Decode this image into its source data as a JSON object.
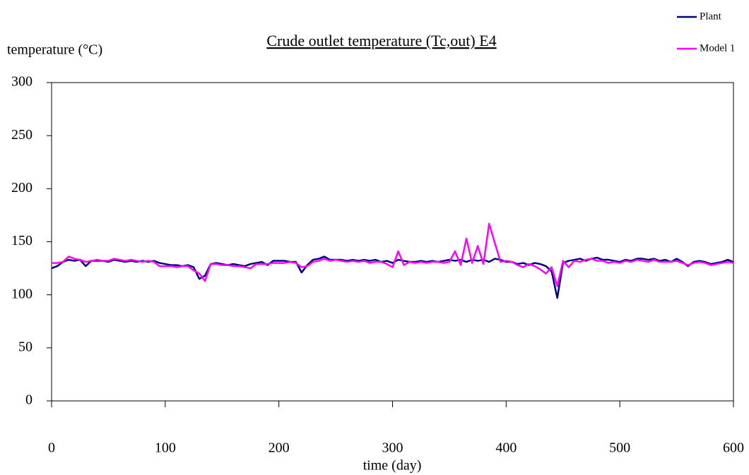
{
  "chart_data": {
    "type": "line",
    "title": "Crude outlet temperature (Tc,out) E4",
    "y_label": "temperature (°C)",
    "x_label": "time (day)",
    "x": [
      0,
      5,
      10,
      15,
      20,
      25,
      30,
      35,
      40,
      45,
      50,
      55,
      60,
      65,
      70,
      75,
      80,
      85,
      90,
      95,
      100,
      105,
      110,
      115,
      120,
      125,
      130,
      135,
      140,
      145,
      150,
      155,
      160,
      165,
      170,
      175,
      180,
      185,
      190,
      195,
      200,
      205,
      210,
      215,
      220,
      225,
      230,
      235,
      240,
      245,
      250,
      255,
      260,
      265,
      270,
      275,
      280,
      285,
      290,
      295,
      300,
      305,
      310,
      315,
      320,
      325,
      330,
      335,
      340,
      345,
      350,
      355,
      360,
      365,
      370,
      375,
      380,
      385,
      390,
      395,
      400,
      405,
      410,
      415,
      420,
      425,
      430,
      435,
      440,
      445,
      450,
      455,
      460,
      465,
      470,
      475,
      480,
      485,
      490,
      495,
      500,
      505,
      510,
      515,
      520,
      525,
      530,
      535,
      540,
      545,
      550,
      555,
      560,
      565,
      570,
      575,
      580,
      585,
      590,
      595,
      600
    ],
    "series": [
      {
        "name": "Plant",
        "color": "#000080",
        "values": [
          125,
          127,
          131,
          133,
          132,
          133,
          127,
          132,
          132,
          132,
          131,
          133,
          132,
          131,
          132,
          131,
          132,
          131,
          132,
          130,
          129,
          128,
          128,
          127,
          128,
          126,
          115,
          118,
          129,
          130,
          129,
          128,
          129,
          128,
          127,
          129,
          130,
          131,
          128,
          132,
          132,
          132,
          131,
          131,
          121,
          128,
          133,
          134,
          136,
          133,
          133,
          133,
          132,
          133,
          132,
          133,
          132,
          133,
          131,
          132,
          130,
          133,
          132,
          131,
          131,
          132,
          131,
          132,
          131,
          132,
          133,
          132,
          133,
          131,
          133,
          132,
          133,
          131,
          134,
          133,
          131,
          131,
          129,
          130,
          128,
          130,
          129,
          127,
          122,
          97,
          130,
          132,
          133,
          134,
          132,
          134,
          135,
          133,
          133,
          132,
          131,
          133,
          132,
          134,
          134,
          133,
          134,
          132,
          133,
          131,
          134,
          131,
          127,
          131,
          132,
          131,
          129,
          130,
          131,
          133,
          131
        ]
      },
      {
        "name": "Model 1",
        "color": "#ff00ff",
        "values": [
          130,
          130,
          131,
          136,
          134,
          133,
          131,
          132,
          133,
          132,
          132,
          134,
          133,
          132,
          133,
          132,
          131,
          132,
          131,
          127,
          127,
          127,
          126,
          127,
          127,
          123,
          120,
          113,
          129,
          129,
          128,
          128,
          127,
          127,
          126,
          125,
          129,
          129,
          129,
          130,
          130,
          130,
          131,
          130,
          126,
          127,
          131,
          132,
          134,
          132,
          133,
          132,
          131,
          132,
          131,
          132,
          130,
          131,
          131,
          129,
          126,
          141,
          128,
          131,
          130,
          131,
          130,
          131,
          131,
          130,
          131,
          141,
          128,
          153,
          130,
          146,
          129,
          167,
          149,
          131,
          132,
          131,
          128,
          126,
          129,
          127,
          124,
          120,
          126,
          108,
          132,
          126,
          132,
          131,
          133,
          134,
          132,
          132,
          130,
          131,
          130,
          132,
          131,
          133,
          132,
          131,
          133,
          131,
          131,
          131,
          132,
          130,
          128,
          130,
          131,
          130,
          128,
          129,
          130,
          131,
          130
        ]
      }
    ],
    "xlim": [
      0,
      600
    ],
    "xticks": [
      0,
      100,
      200,
      300,
      400,
      500,
      600
    ],
    "ylim": [
      0,
      300
    ],
    "yticks": [
      0,
      50,
      100,
      150,
      200,
      250,
      300
    ]
  }
}
